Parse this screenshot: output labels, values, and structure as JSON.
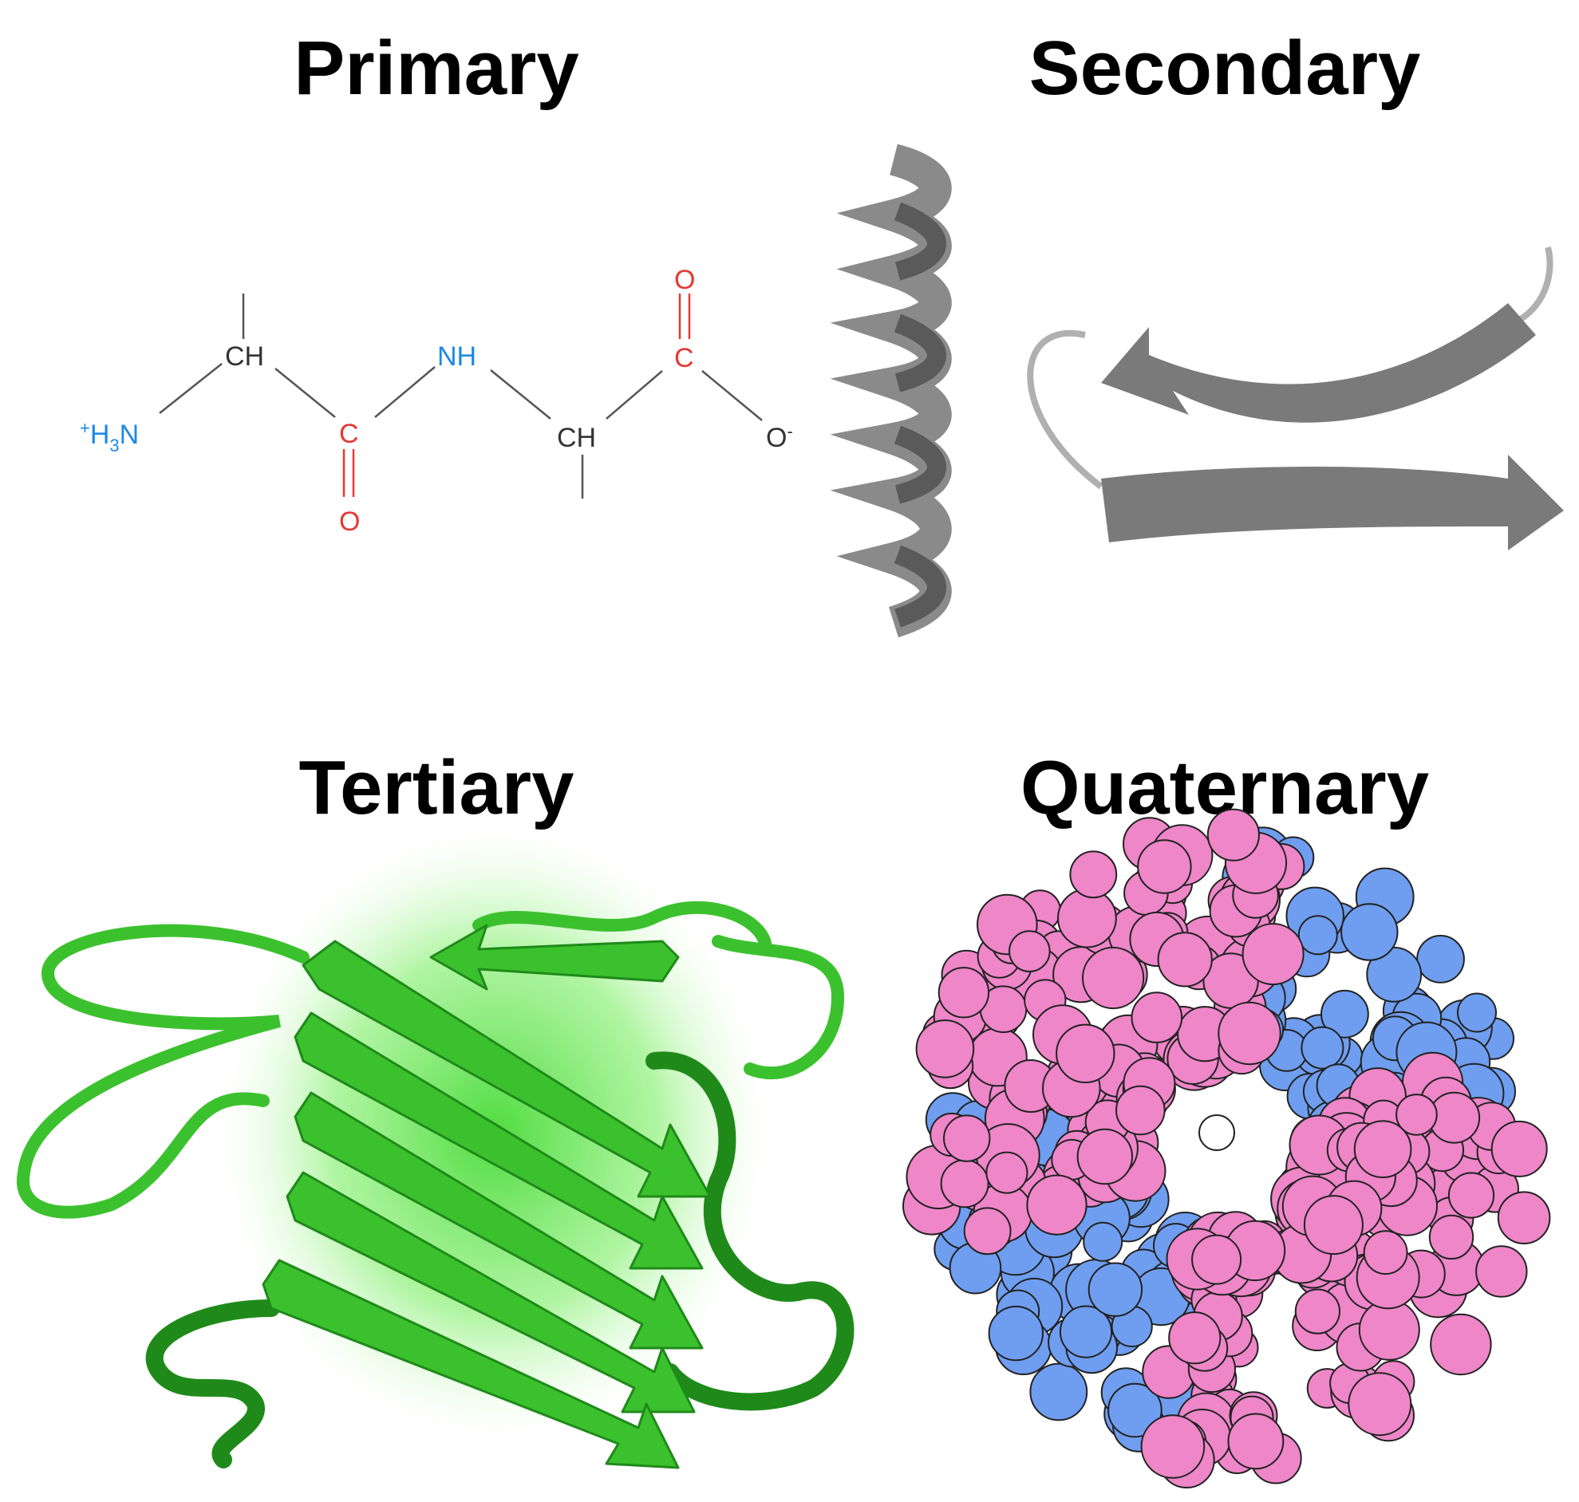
{
  "panels": {
    "primary": {
      "title": "Primary",
      "labels": {
        "h3n_charge": "+",
        "h3n_h": "H",
        "h3n_sub": "3",
        "h3n_n": "N",
        "ch1": "CH",
        "c1": "C",
        "o1": "O",
        "nh": "NH",
        "ch2": "CH",
        "c2": "C",
        "o2": "O",
        "o3": "O",
        "o3_charge": "-"
      },
      "colors": {
        "bond": "#555555",
        "nitrogen": "#1e88e5",
        "oxygen": "#e53935",
        "carbon": "#333333"
      }
    },
    "secondary": {
      "title": "Secondary",
      "colors": {
        "ribbon": "#7a7a7a",
        "ribbon_dark": "#5a5a5a",
        "loop": "#b0b0b0"
      }
    },
    "tertiary": {
      "title": "Tertiary",
      "colors": {
        "strand": "#3cc12e",
        "strand_dark": "#1f8a1a",
        "glow": "#8ef07a"
      }
    },
    "quaternary": {
      "title": "Quaternary",
      "colors": {
        "chain_a": "#ee86c8",
        "chain_b": "#6f9ef0",
        "outline": "#222222"
      }
    }
  }
}
